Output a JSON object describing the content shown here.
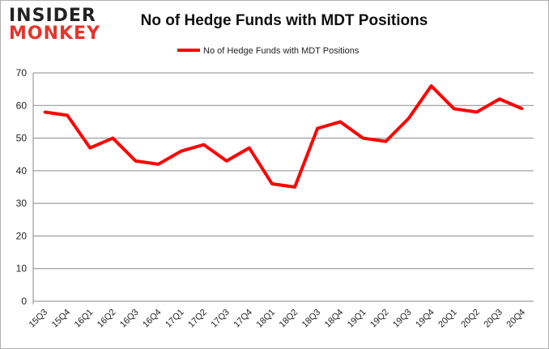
{
  "logo": {
    "line1": "INSIDER",
    "line2": "MONKEY"
  },
  "chart_data": {
    "type": "line",
    "title": "No of Hedge Funds with MDT Positions",
    "xlabel": "",
    "ylabel": "",
    "categories": [
      "15Q3",
      "15Q4",
      "16Q1",
      "16Q2",
      "16Q3",
      "16Q4",
      "17Q1",
      "17Q2",
      "17Q3",
      "17Q4",
      "18Q1",
      "18Q2",
      "18Q3",
      "18Q4",
      "19Q1",
      "19Q2",
      "19Q3",
      "19Q4",
      "20Q1",
      "20Q2",
      "20Q3",
      "20Q4"
    ],
    "series": [
      {
        "name": "No of Hedge Funds with MDT Positions",
        "color": "#ff0000",
        "values": [
          58,
          57,
          47,
          50,
          43,
          42,
          46,
          48,
          43,
          47,
          36,
          35,
          53,
          55,
          50,
          49,
          56,
          66,
          59,
          58,
          62,
          59
        ]
      }
    ],
    "ylim": [
      0,
      70
    ],
    "yticks": [
      0,
      10,
      20,
      30,
      40,
      50,
      60,
      70
    ],
    "grid": true,
    "legend": "top"
  }
}
